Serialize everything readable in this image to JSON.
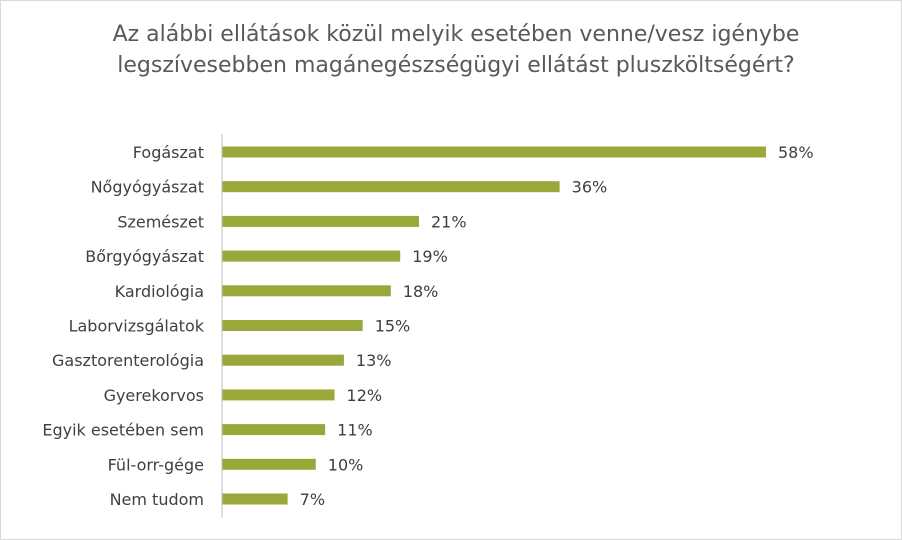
{
  "chart_data": {
    "type": "bar",
    "orientation": "horizontal",
    "title": "Az alábbi ellátások közül melyik esetében venne/vesz igénybe legszívesebben magánegészségügyi ellátást pluszköltségért?",
    "categories": [
      "Fogászat",
      "Nőgyógyászat",
      "Szemészet",
      "Bőrgyógyászat",
      "Kardiológia",
      "Laborvizsgálatok",
      "Gasztorenterológia",
      "Gyerekorvos",
      "Egyik esetében sem",
      "Fül-orr-gége",
      "Nem tudom"
    ],
    "values": [
      58,
      36,
      21,
      19,
      18,
      15,
      13,
      12,
      11,
      10,
      7
    ],
    "value_labels": [
      "58%",
      "36%",
      "21%",
      "19%",
      "18%",
      "15%",
      "13%",
      "12%",
      "11%",
      "10%",
      "7%"
    ],
    "unit": "%",
    "xlim": [
      0,
      60
    ],
    "grid": false,
    "legend": "none",
    "bar_color": "#9aa83a"
  }
}
